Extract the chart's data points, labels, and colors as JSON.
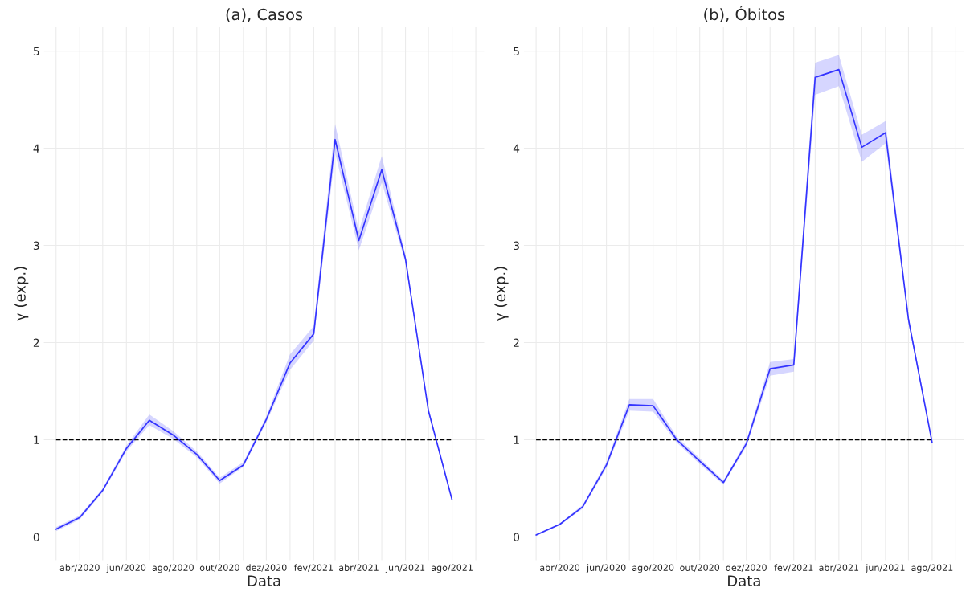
{
  "chart_data": [
    {
      "type": "line",
      "title": "(a), Casos",
      "xlabel": "Data",
      "ylabel": "γ (exp.)",
      "x": [
        "2020-03",
        "2020-04",
        "2020-05",
        "2020-06",
        "2020-07",
        "2020-08",
        "2020-09",
        "2020-10",
        "2020-11",
        "2020-12",
        "2021-01",
        "2021-02",
        "2021-03",
        "2021-04",
        "2021-05",
        "2021-06",
        "2021-07",
        "2021-08"
      ],
      "series": [
        {
          "color": "#3333ff",
          "values": [
            0.08,
            0.2,
            0.48,
            0.91,
            1.2,
            1.05,
            0.85,
            0.58,
            0.74,
            1.21,
            1.79,
            2.09,
            4.09,
            3.05,
            3.78,
            2.86,
            1.3,
            0.38
          ],
          "lower": [
            0.06,
            0.18,
            0.46,
            0.88,
            1.15,
            1.01,
            0.82,
            0.55,
            0.72,
            1.18,
            1.72,
            2.02,
            3.95,
            2.95,
            3.65,
            2.82,
            1.28,
            0.37
          ],
          "upper": [
            0.1,
            0.22,
            0.5,
            0.94,
            1.26,
            1.09,
            0.88,
            0.61,
            0.77,
            1.24,
            1.88,
            2.17,
            4.25,
            3.15,
            3.92,
            2.9,
            1.32,
            0.39
          ]
        }
      ],
      "ref_lines": [
        {
          "axis": "y",
          "value": 1,
          "color": "#000000",
          "line_style": "dashed"
        }
      ],
      "xlim": [
        "2020-02-14",
        "2021-09-12"
      ],
      "xticks": [
        {
          "value": "2020-04",
          "label": "abr/2020"
        },
        {
          "value": "2020-06",
          "label": "jun/2020"
        },
        {
          "value": "2020-08",
          "label": "ago/2020"
        },
        {
          "value": "2020-10",
          "label": "out/2020"
        },
        {
          "value": "2020-12",
          "label": "dez/2020"
        },
        {
          "value": "2021-02",
          "label": "fev/2021"
        },
        {
          "value": "2021-04",
          "label": "abr/2021"
        },
        {
          "value": "2021-06",
          "label": "jun/2021"
        },
        {
          "value": "2021-08",
          "label": "ago/2021"
        }
      ],
      "ylim": [
        -0.24,
        5.25
      ],
      "yticks": [
        0,
        1,
        2,
        3,
        4,
        5
      ],
      "grid": true,
      "legend": false
    },
    {
      "type": "line",
      "title": "(b), Óbitos",
      "xlabel": "Data",
      "ylabel": "γ (exp.)",
      "x": [
        "2020-03",
        "2020-04",
        "2020-05",
        "2020-06",
        "2020-07",
        "2020-08",
        "2020-09",
        "2020-10",
        "2020-11",
        "2020-12",
        "2021-01",
        "2021-02",
        "2021-03",
        "2021-04",
        "2021-05",
        "2021-06",
        "2021-07",
        "2021-08"
      ],
      "series": [
        {
          "color": "#3333ff",
          "values": [
            0.02,
            0.13,
            0.31,
            0.74,
            1.36,
            1.35,
            1.0,
            0.78,
            0.56,
            0.96,
            1.73,
            1.77,
            4.73,
            4.81,
            4.01,
            4.16,
            2.24,
            0.97
          ],
          "lower": [
            0.01,
            0.12,
            0.29,
            0.71,
            1.3,
            1.29,
            0.97,
            0.75,
            0.54,
            0.93,
            1.66,
            1.7,
            4.55,
            4.64,
            3.86,
            4.05,
            2.21,
            0.95
          ],
          "upper": [
            0.03,
            0.14,
            0.33,
            0.77,
            1.42,
            1.42,
            1.03,
            0.81,
            0.58,
            0.99,
            1.8,
            1.83,
            4.88,
            4.96,
            4.14,
            4.28,
            2.27,
            0.99
          ]
        }
      ],
      "ref_lines": [
        {
          "axis": "y",
          "value": 1,
          "color": "#000000",
          "line_style": "dashed"
        }
      ],
      "xlim": [
        "2020-02-14",
        "2021-09-12"
      ],
      "xticks": [
        {
          "value": "2020-04",
          "label": "abr/2020"
        },
        {
          "value": "2020-06",
          "label": "jun/2020"
        },
        {
          "value": "2020-08",
          "label": "ago/2020"
        },
        {
          "value": "2020-10",
          "label": "out/2020"
        },
        {
          "value": "2020-12",
          "label": "dez/2020"
        },
        {
          "value": "2021-02",
          "label": "fev/2021"
        },
        {
          "value": "2021-04",
          "label": "abr/2021"
        },
        {
          "value": "2021-06",
          "label": "jun/2021"
        },
        {
          "value": "2021-08",
          "label": "ago/2021"
        }
      ],
      "ylim": [
        -0.24,
        5.25
      ],
      "yticks": [
        0,
        1,
        2,
        3,
        4,
        5
      ],
      "grid": true,
      "legend": false
    }
  ]
}
